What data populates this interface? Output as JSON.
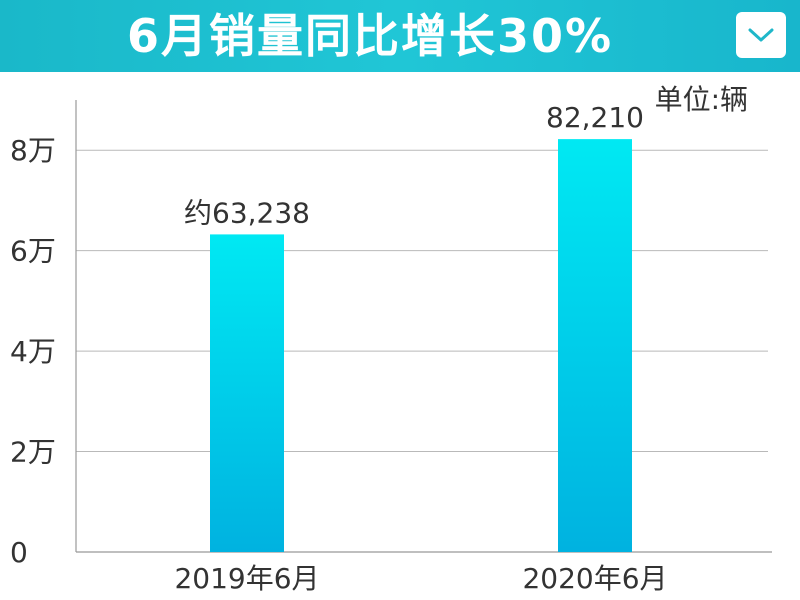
{
  "header": {
    "title": "6月销量同比增长30%",
    "dropdown_icon": "chevron-down-icon"
  },
  "unit_label": "单位:辆",
  "colors": {
    "header_bg": "#1fc2d4",
    "bar_top": "#00e9f3",
    "bar_bottom": "#00b2e0",
    "grid": "#b9b9b9"
  },
  "chart_data": {
    "type": "bar",
    "categories": [
      "2019年6月",
      "2020年6月"
    ],
    "values": [
      63238,
      82210
    ],
    "data_labels": [
      "约63,238",
      "82,210"
    ],
    "ylim": [
      0,
      90000
    ],
    "y_ticks": [
      0,
      20000,
      40000,
      60000,
      80000
    ],
    "y_tick_labels": [
      "0",
      "2万",
      "4万",
      "6万",
      "8万"
    ],
    "grid": true,
    "xlabel": "",
    "ylabel": ""
  }
}
